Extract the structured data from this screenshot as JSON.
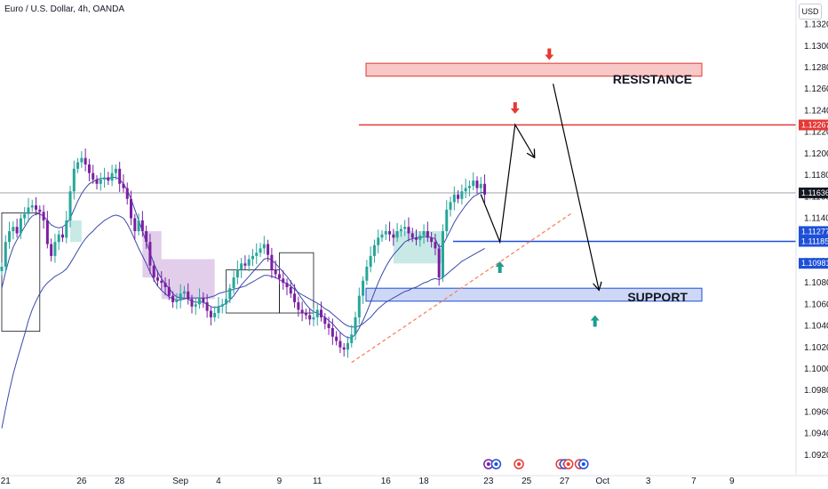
{
  "header": {
    "title": "Euro / U.S. Dollar, 4h, OANDA",
    "currency_button": "USD"
  },
  "colors": {
    "bull": "#26a69a",
    "bear": "#7b1fa2",
    "resistance": "#e53935",
    "support": "#1e4fd8",
    "ma": "#3949ab",
    "trend": "#f57c52",
    "up_arrow": "#1b9e8f",
    "down_arrow": "#e53935"
  },
  "annotations": {
    "resistance_label": "RESISTANCE",
    "support_label": "SUPPORT"
  },
  "chart_data": {
    "type": "candlestick",
    "symbol": "Euro / U.S. Dollar",
    "timeframe": "4h",
    "source": "OANDA",
    "ylim": [
      1.0905,
      1.1337
    ],
    "y_ticks": [
      1.132,
      1.13,
      1.128,
      1.126,
      1.124,
      1.122,
      1.12,
      1.118,
      1.116,
      1.114,
      1.112,
      1.11,
      1.108,
      1.106,
      1.104,
      1.102,
      1.1,
      1.098,
      1.096,
      1.094,
      1.092
    ],
    "y_tick_labels": [
      "1.13200",
      "1.13000",
      "1.12800",
      "1.12600",
      "1.12400",
      "1.12200",
      "1.12000",
      "1.11800",
      "1.11600",
      "1.11400",
      "1.11200",
      "1.11000",
      "1.10800",
      "1.10600",
      "1.10400",
      "1.10200",
      "1.10000",
      "1.09800",
      "1.09600",
      "1.09400",
      "1.09200"
    ],
    "x_ticks": [
      {
        "label": "21",
        "bar": 1
      },
      {
        "label": "26",
        "bar": 21
      },
      {
        "label": "28",
        "bar": 31
      },
      {
        "label": "Sep",
        "bar": 47
      },
      {
        "label": "4",
        "bar": 57
      },
      {
        "label": "9",
        "bar": 73
      },
      {
        "label": "11",
        "bar": 83
      },
      {
        "label": "16",
        "bar": 101
      },
      {
        "label": "18",
        "bar": 111
      },
      {
        "label": "23",
        "bar": 128
      },
      {
        "label": "25",
        "bar": 138
      },
      {
        "label": "27",
        "bar": 148
      },
      {
        "label": "Oct",
        "bar": 158
      },
      {
        "label": "3",
        "bar": 170
      },
      {
        "label": "7",
        "bar": 182
      },
      {
        "label": "9",
        "bar": 192
      }
    ],
    "closes": [
      1.1095,
      1.1118,
      1.1128,
      1.1132,
      1.1126,
      1.114,
      1.1144,
      1.115,
      1.1152,
      1.1148,
      1.1146,
      1.1138,
      1.1116,
      1.1105,
      1.1118,
      1.1125,
      1.1122,
      1.1138,
      1.1165,
      1.1186,
      1.1192,
      1.1196,
      1.119,
      1.1182,
      1.1176,
      1.1172,
      1.1176,
      1.1178,
      1.1175,
      1.1182,
      1.1186,
      1.1172,
      1.1168,
      1.1158,
      1.114,
      1.1128,
      1.1138,
      1.1128,
      1.1118,
      1.1096,
      1.1085,
      1.1082,
      1.108,
      1.1076,
      1.1068,
      1.1062,
      1.1064,
      1.107,
      1.1072,
      1.1065,
      1.1058,
      1.106,
      1.1066,
      1.1062,
      1.1054,
      1.1048,
      1.1052,
      1.1058,
      1.106,
      1.1065,
      1.1075,
      1.1085,
      1.1092,
      1.1098,
      1.1096,
      1.1102,
      1.1105,
      1.1108,
      1.1112,
      1.1116,
      1.1106,
      1.1092,
      1.1088,
      1.1084,
      1.108,
      1.1076,
      1.107,
      1.1062,
      1.1055,
      1.1052,
      1.105,
      1.1046,
      1.1048,
      1.1055,
      1.1048,
      1.1042,
      1.1038,
      1.103,
      1.1026,
      1.102,
      1.1018,
      1.1024,
      1.1032,
      1.1048,
      1.1068,
      1.1082,
      1.1095,
      1.1105,
      1.1115,
      1.1122,
      1.1125,
      1.1128,
      1.1125,
      1.1122,
      1.1128,
      1.113,
      1.1132,
      1.1126,
      1.1122,
      1.112,
      1.1124,
      1.1128,
      1.1122,
      1.1118,
      1.1112,
      1.1085,
      1.1128,
      1.1148,
      1.1155,
      1.1162,
      1.1158,
      1.1165,
      1.1168,
      1.117,
      1.1175,
      1.1168,
      1.1172,
      1.1162
    ],
    "series": [
      {
        "name": "",
        "values": [
          1.0945,
          1.0963,
          1.098,
          1.0995,
          1.1008,
          1.102,
          1.1032,
          1.1045,
          1.1055,
          1.1063,
          1.107,
          1.1076,
          1.108,
          1.1083,
          1.1086,
          1.1088,
          1.109,
          1.1093,
          1.1098,
          1.1104,
          1.111,
          1.1116,
          1.1121,
          1.1125,
          1.1128,
          1.1132,
          1.1135,
          1.1138,
          1.114,
          1.1142,
          1.1143,
          1.1142,
          1.114,
          1.1135,
          1.1128,
          1.112,
          1.1112,
          1.1105,
          1.1098,
          1.109,
          1.1083,
          1.1077,
          1.1073,
          1.107,
          1.1067,
          1.1065,
          1.1064,
          1.1064,
          1.1065,
          1.1066,
          1.1066,
          1.1066,
          1.1066,
          1.1066,
          1.1066,
          1.1067,
          1.1068,
          1.107,
          1.1071,
          1.1072,
          1.1073,
          1.1074,
          1.1075,
          1.1076,
          1.1077,
          1.1079,
          1.1081,
          1.1083,
          1.1085,
          1.1087,
          1.1087,
          1.1086,
          1.1085,
          1.1083,
          1.1081,
          1.1079,
          1.1077,
          1.1074,
          1.1071,
          1.1069,
          1.1067,
          1.1065,
          1.1063,
          1.1061,
          1.1059,
          1.1056,
          1.1054,
          1.1051,
          1.1048,
          1.1045,
          1.1042,
          1.104,
          1.1039,
          1.1039,
          1.104,
          1.1042,
          1.1045,
          1.1048,
          1.1052,
          1.1056,
          1.1059,
          1.1062,
          1.1064,
          1.1066,
          1.1068,
          1.107,
          1.1072,
          1.1073,
          1.1075,
          1.1076,
          1.1078,
          1.108,
          1.1081,
          1.1083,
          1.1084,
          1.1083,
          1.1085,
          1.1088,
          1.1091,
          1.1094,
          1.1097,
          1.11,
          1.1102,
          1.1104,
          1.1106,
          1.1108,
          1.111,
          1.1112
        ]
      },
      {
        "name": "",
        "values": [
          1.1075,
          1.109,
          1.1103,
          1.1113,
          1.112,
          1.1126,
          1.1132,
          1.1138,
          1.1142,
          1.1144,
          1.1144,
          1.1142,
          1.1138,
          1.1134,
          1.1132,
          1.1131,
          1.1132,
          1.1135,
          1.114,
          1.1148,
          1.1156,
          1.1163,
          1.1168,
          1.1172,
          1.1174,
          1.1176,
          1.1177,
          1.1177,
          1.1177,
          1.1178,
          1.1178,
          1.1176,
          1.1172,
          1.1166,
          1.1158,
          1.1148,
          1.1138,
          1.1128,
          1.1118,
          1.1108,
          1.1098,
          1.109,
          1.1084,
          1.1079,
          1.1075,
          1.107,
          1.1067,
          1.1066,
          1.1066,
          1.1065,
          1.1063,
          1.1062,
          1.1062,
          1.1062,
          1.106,
          1.1058,
          1.1057,
          1.1058,
          1.1059,
          1.1061,
          1.1064,
          1.1068,
          1.1073,
          1.1078,
          1.1082,
          1.1086,
          1.109,
          1.1094,
          1.1098,
          1.1102,
          1.1103,
          1.1101,
          1.1098,
          1.1094,
          1.109,
          1.1086,
          1.1081,
          1.1076,
          1.107,
          1.1065,
          1.106,
          1.1056,
          1.1053,
          1.1052,
          1.105,
          1.1048,
          1.1045,
          1.1042,
          1.1038,
          1.1034,
          1.1031,
          1.1029,
          1.1029,
          1.1032,
          1.1038,
          1.1045,
          1.1053,
          1.1062,
          1.1071,
          1.108,
          1.1088,
          1.1095,
          1.1101,
          1.1106,
          1.111,
          1.1114,
          1.1118,
          1.112,
          1.1121,
          1.1122,
          1.1122,
          1.1123,
          1.1123,
          1.1122,
          1.1121,
          1.1113,
          1.1115,
          1.1122,
          1.1129,
          1.1136,
          1.1142,
          1.1147,
          1.1152,
          1.1156,
          1.116,
          1.1162,
          1.1164,
          1.1164
        ]
      }
    ],
    "levels": {
      "resistance_zone": [
        1.1272,
        1.1284
      ],
      "resistance_line": 1.12267,
      "current_price": 1.11636,
      "support_line": 1.11185,
      "support_zone": [
        1.1063,
        1.1075
      ]
    },
    "price_tags": [
      {
        "label": "1.12267",
        "value": 1.12267,
        "color": "#e53935"
      },
      {
        "label": "1.11636",
        "value": 1.11636,
        "color": "#131722"
      },
      {
        "label": "1.11277",
        "value": 1.11277,
        "color": "#1e4fd8"
      },
      {
        "label": "1.11185",
        "value": 1.11185,
        "color": "#1e4fd8"
      },
      {
        "label": "1.10981",
        "value": 1.10981,
        "color": "#1e4fd8"
      }
    ],
    "trendline": {
      "from": {
        "bar": 92,
        "value": 1.1006
      },
      "to": {
        "bar": 150,
        "value": 1.1145
      }
    },
    "projection_1": [
      {
        "bar": 126,
        "value": 1.1162
      },
      {
        "bar": 131,
        "value": 1.1118
      },
      {
        "bar": 135,
        "value": 1.1227
      },
      {
        "bar": 140,
        "value": 1.1197
      }
    ],
    "projection_2": [
      {
        "bar": 145,
        "value": 1.1265
      },
      {
        "bar": 157,
        "value": 1.1074
      }
    ],
    "down_arrows": [
      {
        "bar": 144,
        "value": 1.1292
      },
      {
        "bar": 135,
        "value": 1.1242
      }
    ],
    "up_arrows": [
      {
        "bar": 131,
        "value": 1.1095
      },
      {
        "bar": 156,
        "value": 1.1045
      }
    ],
    "legend": "none",
    "grid": false
  }
}
